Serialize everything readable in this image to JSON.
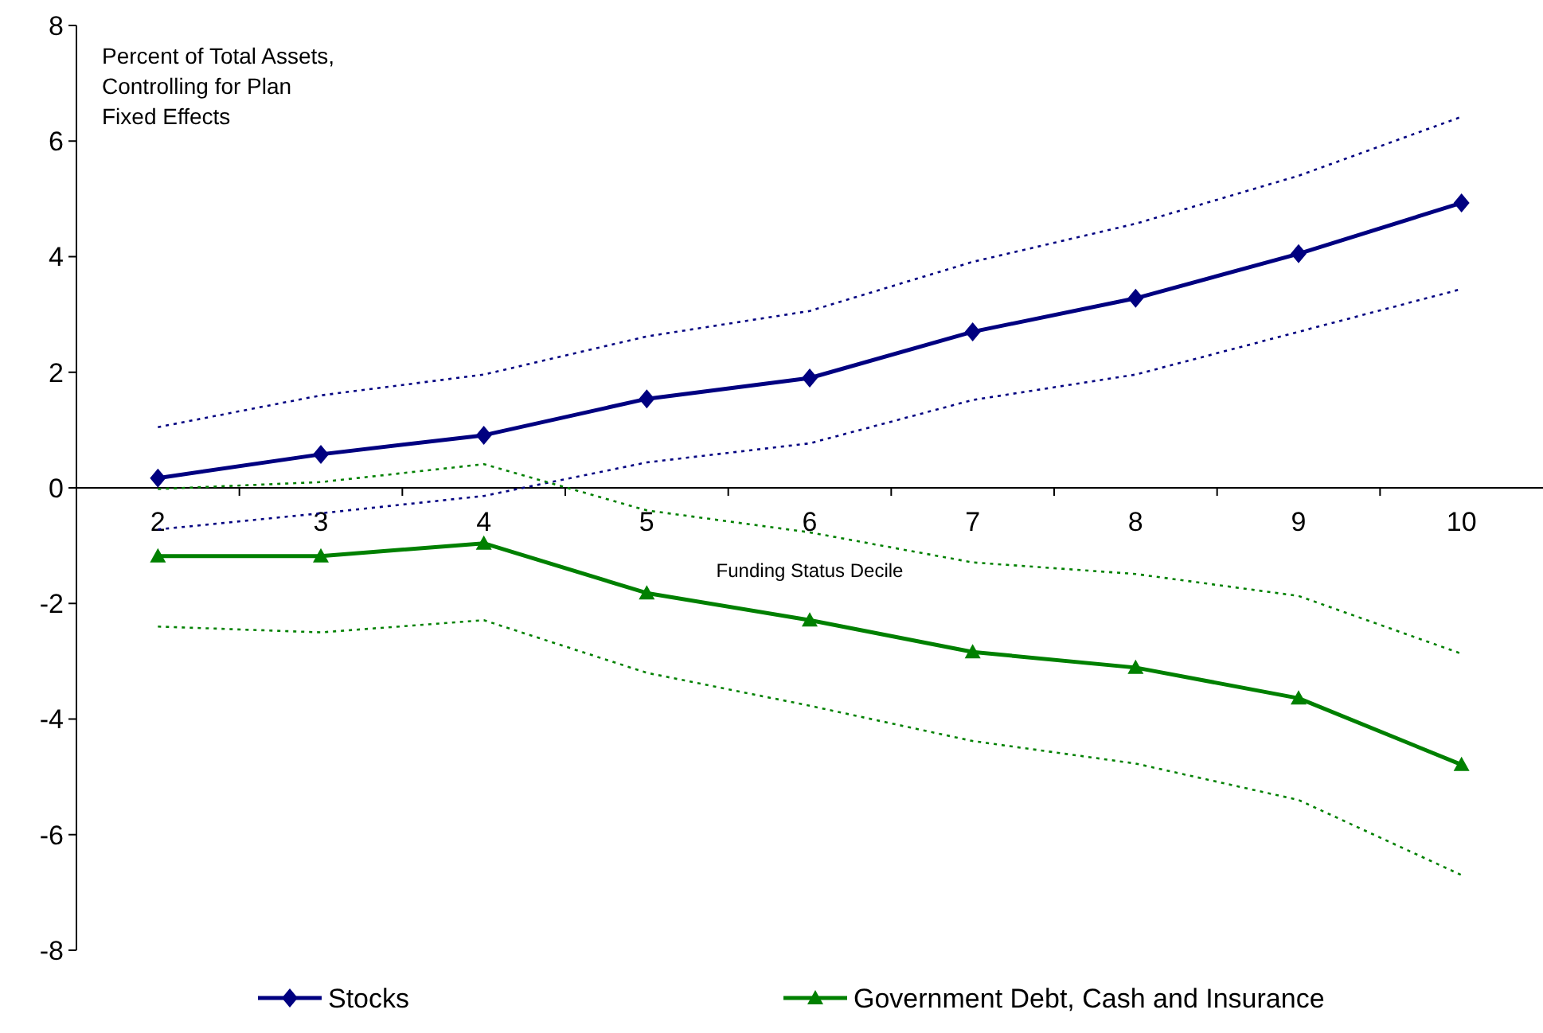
{
  "chart_data": {
    "type": "line",
    "ylabel": "Percent of Total Assets,\nControlling for Plan\nFixed Effects",
    "xlabel": "Funding Status Decile",
    "categories": [
      "2",
      "3",
      "4",
      "5",
      "6",
      "7",
      "8",
      "9",
      "10"
    ],
    "series": [
      {
        "color": "#000080",
        "line_style": "dotted",
        "marker": "none",
        "values": [
          1.05,
          1.6,
          1.96,
          2.62,
          3.06,
          3.91,
          4.57,
          5.4,
          6.42
        ]
      },
      {
        "color": "#000080",
        "line_style": "dotted",
        "marker": "none",
        "values": [
          -0.72,
          -0.44,
          -0.14,
          0.44,
          0.77,
          1.52,
          1.96,
          2.7,
          3.44
        ]
      },
      {
        "color": "#008000",
        "line_style": "dotted",
        "marker": "none",
        "values": [
          -0.02,
          0.1,
          0.41,
          -0.39,
          -0.77,
          -1.29,
          -1.49,
          -1.87,
          -2.87
        ]
      },
      {
        "color": "#008000",
        "line_style": "dotted",
        "marker": "none",
        "values": [
          -2.4,
          -2.5,
          -2.29,
          -3.2,
          -3.77,
          -4.38,
          -4.77,
          -5.4,
          -6.7
        ]
      },
      {
        "name": "Stocks",
        "color": "#000080",
        "marker": "diamond",
        "values": [
          0.17,
          0.58,
          0.91,
          1.54,
          1.9,
          2.7,
          3.28,
          4.05,
          4.93
        ]
      },
      {
        "name": "Government Debt, Cash and Insurance",
        "color": "#008000",
        "marker": "triangle",
        "values": [
          -1.18,
          -1.18,
          -0.96,
          -1.82,
          -2.29,
          -2.84,
          -3.11,
          -3.64,
          -4.79
        ]
      }
    ],
    "ylim": [
      -8,
      8
    ],
    "yticks": [
      -8,
      -6,
      -4,
      -2,
      0,
      2,
      4,
      6,
      8
    ],
    "legend": "bottom",
    "line_style": "solid"
  }
}
